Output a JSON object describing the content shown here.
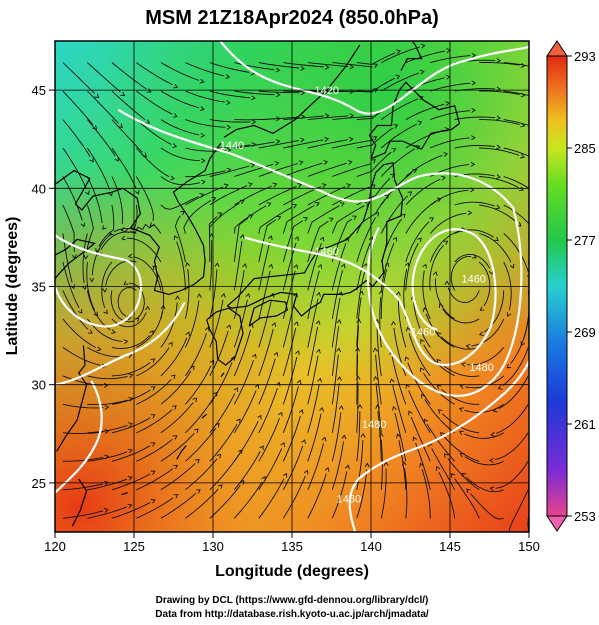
{
  "title": "MSM 21Z18Apr2024 (850.0hPa)",
  "x_axis": {
    "label": "Longitude (degrees)",
    "range": [
      120,
      150
    ],
    "ticks": [
      "120",
      "125",
      "130",
      "135",
      "140",
      "145",
      "150"
    ]
  },
  "y_axis": {
    "label": "Latitude  (degrees)",
    "range": [
      22.5,
      47.5
    ],
    "ticks": [
      "25",
      "30",
      "35",
      "40",
      "45"
    ]
  },
  "colorbar": {
    "range": [
      253,
      293
    ],
    "ticks": [
      "293",
      "285",
      "277",
      "269",
      "261",
      "253"
    ],
    "colors": [
      "#e8448a",
      "#7a2bd6",
      "#1c3ad8",
      "#1a7de0",
      "#28d0d0",
      "#22c84a",
      "#66dd22",
      "#c8e61e",
      "#f0c020",
      "#f07020",
      "#e02a10"
    ]
  },
  "contour_labels": [
    {
      "text": "1420",
      "lon": 137.2,
      "lat": 44.8
    },
    {
      "text": "1440",
      "lon": 131.2,
      "lat": 42.0
    },
    {
      "text": "1460",
      "lon": 137.2,
      "lat": 36.6
    },
    {
      "text": "1460",
      "lon": 146.5,
      "lat": 35.2
    },
    {
      "text": "1460",
      "lon": 143.3,
      "lat": 32.5
    },
    {
      "text": "1480",
      "lon": 140.2,
      "lat": 27.8
    },
    {
      "text": "1480",
      "lon": 147.0,
      "lat": 30.7
    },
    {
      "text": "1480",
      "lon": 138.6,
      "lat": 24.0
    }
  ],
  "footer": {
    "line1": "Drawing by DCL (https://www.gfd-dennou.org/library/dcl/)",
    "line2": "Data from http://database.rish.kyoto-u.ac.jp/arch/jmadata/"
  }
}
